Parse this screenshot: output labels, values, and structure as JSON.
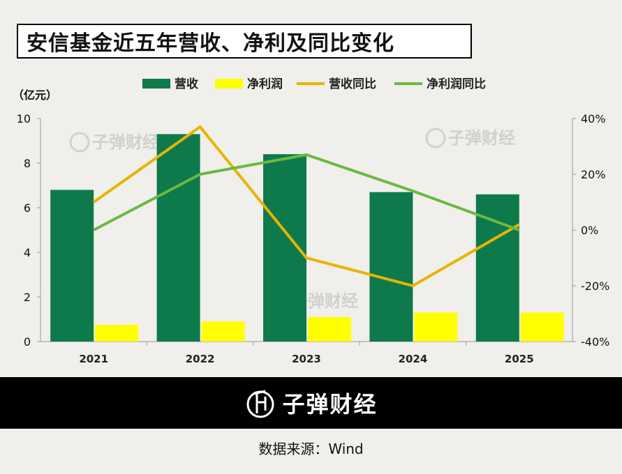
{
  "title": "安信基金近五年营收、净利及同比变化",
  "unit_label": "（亿元）",
  "brand": "子弹财经",
  "source": "数据来源：Wind",
  "colors": {
    "revenue": "#0e7a4b",
    "profit": "#ffff00",
    "revenue_yoy": "#e8b400",
    "profit_yoy": "#6ab940"
  },
  "chart_data": {
    "type": "bar",
    "categories": [
      "2021",
      "2022",
      "2023",
      "2024",
      "2025"
    ],
    "series": [
      {
        "name": "营收",
        "type": "bar",
        "axis": "left",
        "values": [
          6.8,
          9.3,
          8.4,
          6.7,
          6.6
        ]
      },
      {
        "name": "净利润",
        "type": "bar",
        "axis": "left",
        "values": [
          0.75,
          0.9,
          1.1,
          1.3,
          1.3
        ]
      },
      {
        "name": "营收同比",
        "type": "line",
        "axis": "right",
        "values": [
          10,
          37,
          -10,
          -20,
          2
        ]
      },
      {
        "name": "净利润同比",
        "type": "line",
        "axis": "right",
        "values": [
          0,
          20,
          27,
          14,
          0
        ]
      }
    ],
    "left_axis": {
      "min": 0,
      "max": 10,
      "ticks": [
        "0",
        "2",
        "4",
        "6",
        "8",
        "10"
      ]
    },
    "right_axis": {
      "min": -40,
      "max": 40,
      "ticks": [
        "-40%",
        "-20%",
        "0%",
        "20%",
        "40%"
      ]
    },
    "legend_position": "top"
  }
}
